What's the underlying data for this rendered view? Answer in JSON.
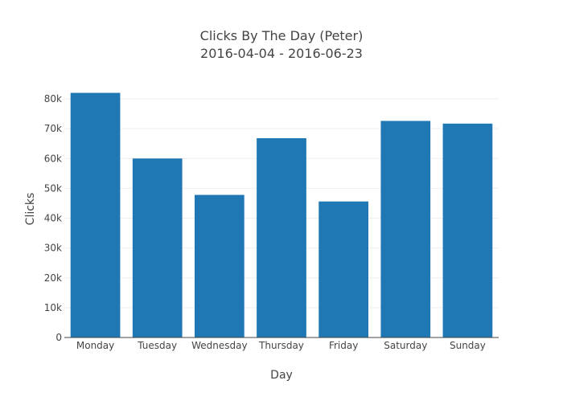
{
  "chart_data": {
    "type": "bar",
    "title": "Clicks By The Day (Peter)",
    "subtitle": "2016-04-04 - 2016-06-23",
    "xlabel": "Day",
    "ylabel": "Clicks",
    "categories": [
      "Monday",
      "Tuesday",
      "Wednesday",
      "Thursday",
      "Friday",
      "Saturday",
      "Sunday"
    ],
    "values": [
      82000,
      60000,
      47800,
      66800,
      45600,
      72600,
      71700
    ],
    "ylim": [
      0,
      80000
    ],
    "yticks": [
      0,
      10000,
      20000,
      30000,
      40000,
      50000,
      60000,
      70000,
      80000
    ],
    "ytick_labels": [
      "0",
      "10k",
      "20k",
      "30k",
      "40k",
      "50k",
      "60k",
      "70k",
      "80k"
    ],
    "grid": true,
    "bar_color": "#1f77b4",
    "grid_color": "#eeeeee",
    "axis_color": "#444444"
  }
}
